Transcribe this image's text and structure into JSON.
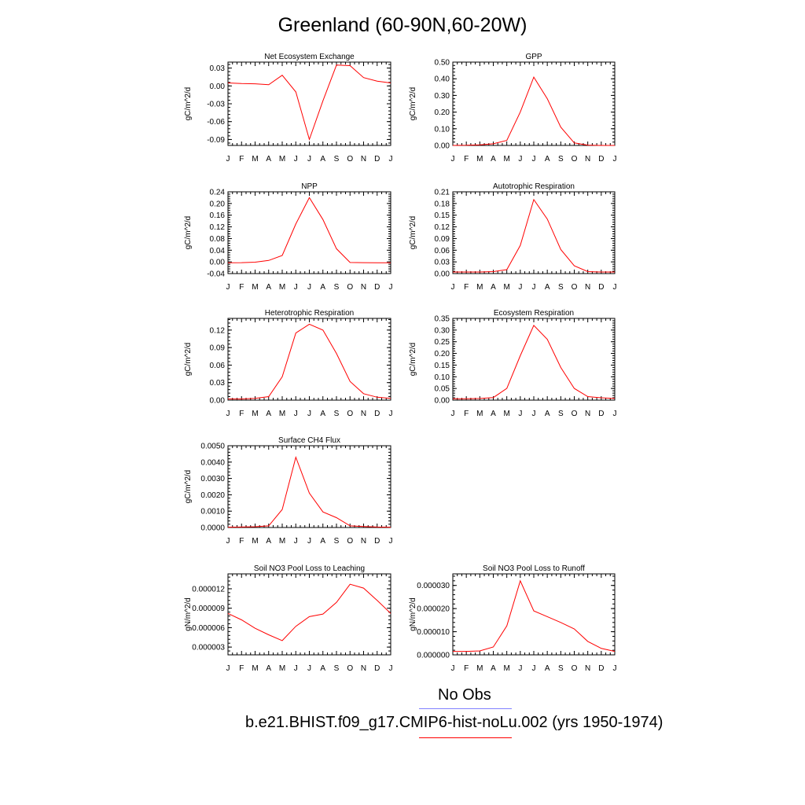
{
  "title": "Greenland (60-90N,60-20W)",
  "colors": {
    "model": "#ff0000",
    "obs": "#8080ff",
    "axis": "#000000"
  },
  "legend": {
    "obs_label": "No Obs",
    "model_label": "b.e21.BHIST.f09_g17.CMIP6-hist-noLu.002 (yrs 1950-1974)"
  },
  "chart_data": [
    {
      "type": "line",
      "title": "Net Ecosystem Exchange",
      "ylabel": "gC/m^2/d",
      "x": [
        "J",
        "F",
        "M",
        "A",
        "M",
        "J",
        "J",
        "A",
        "S",
        "O",
        "N",
        "D",
        "J"
      ],
      "ylim": [
        -0.1,
        0.04
      ],
      "yticks": [
        "-0.09",
        "-0.06",
        "-0.03",
        "0.00",
        "0.03"
      ],
      "ytick_values": [
        -0.09,
        -0.06,
        -0.03,
        0.0,
        0.03
      ],
      "series": [
        {
          "values": [
            0.005,
            0.004,
            0.0035,
            0.002,
            0.018,
            -0.01,
            -0.09,
            -0.025,
            0.035,
            0.034,
            0.014,
            0.008,
            0.005
          ]
        }
      ]
    },
    {
      "type": "line",
      "title": "GPP",
      "ylabel": "gC/m^2/d",
      "x": [
        "J",
        "F",
        "M",
        "A",
        "M",
        "J",
        "J",
        "A",
        "S",
        "O",
        "N",
        "D",
        "J"
      ],
      "ylim": [
        0.0,
        0.5
      ],
      "yticks": [
        "0.00",
        "0.10",
        "0.20",
        "0.30",
        "0.40",
        "0.50"
      ],
      "ytick_values": [
        0.0,
        0.1,
        0.2,
        0.3,
        0.4,
        0.5
      ],
      "series": [
        {
          "values": [
            0.0,
            0.001,
            0.004,
            0.01,
            0.03,
            0.2,
            0.41,
            0.28,
            0.11,
            0.015,
            0.002,
            0.0,
            0.0
          ]
        }
      ]
    },
    {
      "type": "line",
      "title": "NPP",
      "ylabel": "gC/m^2/d",
      "x": [
        "J",
        "F",
        "M",
        "A",
        "M",
        "J",
        "J",
        "A",
        "S",
        "O",
        "N",
        "D",
        "J"
      ],
      "ylim": [
        -0.04,
        0.24
      ],
      "yticks": [
        "-0.04",
        "0.00",
        "0.04",
        "0.08",
        "0.12",
        "0.16",
        "0.20",
        "0.24"
      ],
      "ytick_values": [
        -0.04,
        0.0,
        0.04,
        0.08,
        0.12,
        0.16,
        0.2,
        0.24
      ],
      "series": [
        {
          "values": [
            -0.003,
            -0.0025,
            -0.001,
            0.005,
            0.022,
            0.13,
            0.22,
            0.145,
            0.045,
            -0.002,
            -0.0025,
            -0.003,
            -0.003
          ]
        }
      ]
    },
    {
      "type": "line",
      "title": "Autotrophic Respiration",
      "ylabel": "gC/m^2/d",
      "x": [
        "J",
        "F",
        "M",
        "A",
        "M",
        "J",
        "J",
        "A",
        "S",
        "O",
        "N",
        "D",
        "J"
      ],
      "ylim": [
        0.0,
        0.21
      ],
      "yticks": [
        "0.00",
        "0.03",
        "0.06",
        "0.09",
        "0.12",
        "0.15",
        "0.18",
        "0.21"
      ],
      "ytick_values": [
        0.0,
        0.03,
        0.06,
        0.09,
        0.12,
        0.15,
        0.18,
        0.21
      ],
      "series": [
        {
          "values": [
            0.004,
            0.004,
            0.004,
            0.005,
            0.01,
            0.072,
            0.19,
            0.14,
            0.062,
            0.02,
            0.005,
            0.004,
            0.004
          ]
        }
      ]
    },
    {
      "type": "line",
      "title": "Heterotrophic Respiration",
      "ylabel": "gC/m^2/d",
      "x": [
        "J",
        "F",
        "M",
        "A",
        "M",
        "J",
        "J",
        "A",
        "S",
        "O",
        "N",
        "D",
        "J"
      ],
      "ylim": [
        0.0,
        0.14
      ],
      "yticks": [
        "0.00",
        "0.03",
        "0.06",
        "0.09",
        "0.12"
      ],
      "ytick_values": [
        0.0,
        0.03,
        0.06,
        0.09,
        0.12
      ],
      "series": [
        {
          "values": [
            0.002,
            0.002,
            0.003,
            0.006,
            0.04,
            0.115,
            0.13,
            0.12,
            0.08,
            0.032,
            0.011,
            0.005,
            0.003
          ]
        }
      ]
    },
    {
      "type": "line",
      "title": "Ecosystem Respiration",
      "ylabel": "gC/m^2/d",
      "x": [
        "J",
        "F",
        "M",
        "A",
        "M",
        "J",
        "J",
        "A",
        "S",
        "O",
        "N",
        "D",
        "J"
      ],
      "ylim": [
        0.0,
        0.35
      ],
      "yticks": [
        "0.00",
        "0.05",
        "0.10",
        "0.15",
        "0.20",
        "0.25",
        "0.30",
        "0.35"
      ],
      "ytick_values": [
        0.0,
        0.05,
        0.1,
        0.15,
        0.2,
        0.25,
        0.3,
        0.35
      ],
      "series": [
        {
          "values": [
            0.006,
            0.006,
            0.007,
            0.011,
            0.05,
            0.19,
            0.32,
            0.26,
            0.14,
            0.05,
            0.015,
            0.01,
            0.007
          ]
        }
      ]
    },
    {
      "type": "line",
      "title": "Surface CH4 Flux",
      "ylabel": "gC/m^2/d",
      "x": [
        "J",
        "F",
        "M",
        "A",
        "M",
        "J",
        "J",
        "A",
        "S",
        "O",
        "N",
        "D",
        "J"
      ],
      "ylim": [
        0.0,
        0.005
      ],
      "yticks": [
        "0.0000",
        "0.0010",
        "0.0020",
        "0.0030",
        "0.0040",
        "0.0050"
      ],
      "ytick_values": [
        0.0,
        0.001,
        0.002,
        0.003,
        0.004,
        0.005
      ],
      "series": [
        {
          "values": [
            2e-05,
            3e-05,
            5e-05,
            0.0001,
            0.0011,
            0.0043,
            0.0021,
            0.00095,
            0.0006,
            0.0001,
            6e-05,
            3e-05,
            2e-05
          ]
        }
      ]
    },
    {
      "type": "line",
      "title": "Soil NO3 Pool Loss to Leaching",
      "ylabel": "gN/m^2/d",
      "x": [
        "J",
        "F",
        "M",
        "A",
        "M",
        "J",
        "J",
        "A",
        "S",
        "O",
        "N",
        "D",
        "J"
      ],
      "ylim": [
        1.8e-06,
        1.43e-05
      ],
      "yticks": [
        "0.000003",
        "0.000006",
        "0.000009",
        "0.000012"
      ],
      "ytick_values": [
        3e-06,
        6e-06,
        9e-06,
        1.2e-05
      ],
      "series": [
        {
          "values": [
            8.2e-06,
            7.2e-06,
            5.9e-06,
            4.9e-06,
            4e-06,
            6.2e-06,
            7.7e-06,
            8.1e-06,
            9.9e-06,
            1.27e-05,
            1.21e-05,
            1.02e-05,
            8.2e-06
          ]
        }
      ]
    },
    {
      "type": "line",
      "title": "Soil NO3 Pool Loss to Runoff",
      "ylabel": "gN/m^2/d",
      "x": [
        "J",
        "F",
        "M",
        "A",
        "M",
        "J",
        "J",
        "A",
        "S",
        "O",
        "N",
        "D",
        "J"
      ],
      "ylim": [
        0.0,
        3.5e-05
      ],
      "yticks": [
        "0.000000",
        "0.000010",
        "0.000020",
        "0.000030"
      ],
      "ytick_values": [
        0.0,
        1e-05,
        2e-05,
        3e-05
      ],
      "series": [
        {
          "values": [
            1.5e-06,
            1.5e-06,
            1.7e-06,
            3.4e-06,
            1.25e-05,
            3.2e-05,
            1.9e-05,
            1.65e-05,
            1.4e-05,
            1.12e-05,
            5.8e-06,
            2.8e-06,
            1.5e-06
          ]
        }
      ]
    }
  ]
}
